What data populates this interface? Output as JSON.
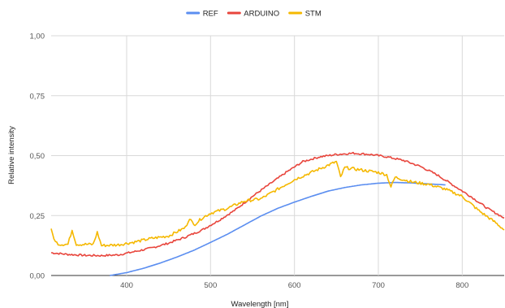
{
  "chart_data": {
    "type": "line",
    "title": "",
    "xlabel": "Wavelength [nm]",
    "ylabel": "Relative intensity",
    "xlim": [
      310,
      850
    ],
    "ylim": [
      0,
      1
    ],
    "x_ticks": [
      400,
      500,
      600,
      700,
      800
    ],
    "y_ticks": [
      0,
      0.25,
      0.5,
      0.75,
      1
    ],
    "y_tick_labels": [
      "0,00",
      "0,25",
      "0,50",
      "0,75",
      "1,00"
    ],
    "grid": true,
    "legend_position": "top",
    "series": [
      {
        "name": "REF",
        "color": "#5b8ef0",
        "noise": 0,
        "points": [
          [
            380,
            0
          ],
          [
            400,
            0.012
          ],
          [
            420,
            0.03
          ],
          [
            440,
            0.052
          ],
          [
            460,
            0.077
          ],
          [
            480,
            0.105
          ],
          [
            500,
            0.138
          ],
          [
            520,
            0.172
          ],
          [
            540,
            0.21
          ],
          [
            560,
            0.248
          ],
          [
            580,
            0.28
          ],
          [
            600,
            0.306
          ],
          [
            620,
            0.33
          ],
          [
            640,
            0.352
          ],
          [
            660,
            0.367
          ],
          [
            680,
            0.378
          ],
          [
            700,
            0.385
          ],
          [
            720,
            0.388
          ],
          [
            740,
            0.386
          ],
          [
            760,
            0.382
          ],
          [
            780,
            0.378
          ]
        ]
      },
      {
        "name": "ARDUINO",
        "color": "#e8453c",
        "noise": 0.004,
        "points": [
          [
            310,
            0.095
          ],
          [
            330,
            0.088
          ],
          [
            350,
            0.084
          ],
          [
            370,
            0.083
          ],
          [
            390,
            0.086
          ],
          [
            410,
            0.1
          ],
          [
            430,
            0.115
          ],
          [
            450,
            0.135
          ],
          [
            470,
            0.16
          ],
          [
            490,
            0.19
          ],
          [
            510,
            0.23
          ],
          [
            530,
            0.275
          ],
          [
            550,
            0.33
          ],
          [
            570,
            0.38
          ],
          [
            590,
            0.43
          ],
          [
            610,
            0.475
          ],
          [
            630,
            0.495
          ],
          [
            650,
            0.505
          ],
          [
            670,
            0.51
          ],
          [
            690,
            0.505
          ],
          [
            710,
            0.495
          ],
          [
            730,
            0.48
          ],
          [
            750,
            0.455
          ],
          [
            770,
            0.42
          ],
          [
            790,
            0.375
          ],
          [
            810,
            0.33
          ],
          [
            830,
            0.28
          ],
          [
            850,
            0.24
          ]
        ]
      },
      {
        "name": "STM",
        "color": "#f5b800",
        "noise": 0.006,
        "points": [
          [
            310,
            0.19
          ],
          [
            315,
            0.14
          ],
          [
            320,
            0.13
          ],
          [
            330,
            0.13
          ],
          [
            335,
            0.19
          ],
          [
            340,
            0.13
          ],
          [
            360,
            0.13
          ],
          [
            365,
            0.18
          ],
          [
            370,
            0.125
          ],
          [
            390,
            0.128
          ],
          [
            410,
            0.14
          ],
          [
            430,
            0.155
          ],
          [
            450,
            0.165
          ],
          [
            470,
            0.2
          ],
          [
            475,
            0.24
          ],
          [
            480,
            0.21
          ],
          [
            490,
            0.24
          ],
          [
            500,
            0.26
          ],
          [
            520,
            0.28
          ],
          [
            540,
            0.31
          ],
          [
            560,
            0.32
          ],
          [
            580,
            0.36
          ],
          [
            600,
            0.4
          ],
          [
            620,
            0.43
          ],
          [
            640,
            0.46
          ],
          [
            650,
            0.475
          ],
          [
            655,
            0.41
          ],
          [
            660,
            0.45
          ],
          [
            680,
            0.44
          ],
          [
            700,
            0.43
          ],
          [
            710,
            0.42
          ],
          [
            715,
            0.37
          ],
          [
            720,
            0.41
          ],
          [
            740,
            0.39
          ],
          [
            760,
            0.38
          ],
          [
            780,
            0.36
          ],
          [
            800,
            0.33
          ],
          [
            820,
            0.27
          ],
          [
            840,
            0.22
          ],
          [
            850,
            0.19
          ]
        ]
      }
    ]
  }
}
